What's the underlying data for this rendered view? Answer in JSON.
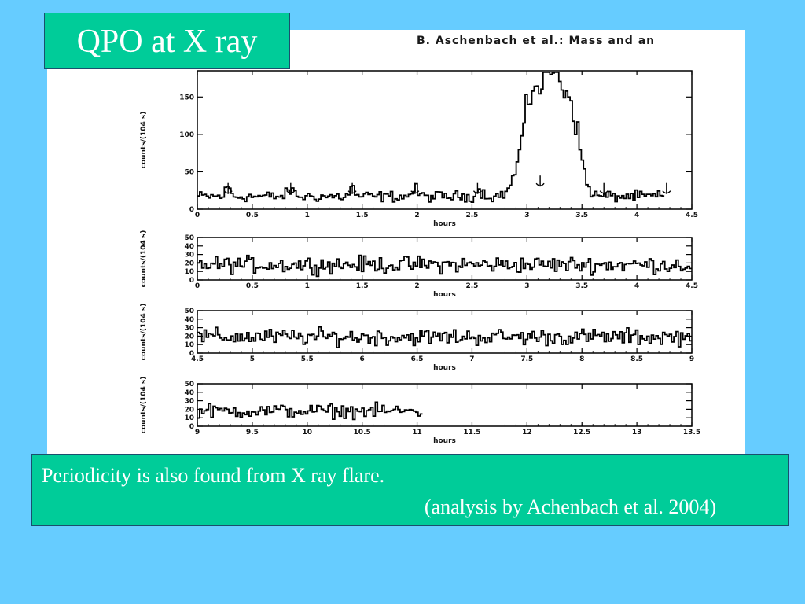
{
  "slide": {
    "title": "QPO at X ray",
    "caption_line1": "Periodicity is also found from X ray flare.",
    "caption_line2": "(analysis by Achenbach et al. 2004)"
  },
  "figure": {
    "paper_header": "B. Aschenbach et al.: Mass and an"
  },
  "colors": {
    "background": "#66ccff",
    "box": "#00cc99",
    "trace": "#000000"
  },
  "chart_data": [
    {
      "type": "line",
      "xlabel": "hours",
      "ylabel": "counts/(104 s)",
      "xlim": [
        0,
        4.5
      ],
      "ylim": [
        0,
        185
      ],
      "xticks": [
        0,
        0.5,
        1,
        1.5,
        2,
        2.5,
        3,
        3.5,
        4,
        4.5
      ],
      "xtick_labels": [
        "0",
        "0.5",
        "1",
        "1.5",
        "2",
        "2.5",
        "3",
        "3.5",
        "4",
        "4.5"
      ],
      "yticks": [
        0,
        50,
        100,
        150
      ],
      "ytick_labels": [
        "0",
        "50",
        "100",
        "150"
      ],
      "base_level": 17,
      "noise": 4.5,
      "bumps": [
        {
          "x": 0.28,
          "amp": 13,
          "w": 0.03
        },
        {
          "x": 0.85,
          "amp": 9,
          "w": 0.04
        },
        {
          "x": 1.41,
          "amp": 12,
          "w": 0.03
        },
        {
          "x": 1.98,
          "amp": 9,
          "w": 0.04
        },
        {
          "x": 2.57,
          "amp": 8,
          "w": 0.04
        }
      ],
      "flare": [
        {
          "x": 3.05,
          "amp": 115,
          "w": 0.14
        },
        {
          "x": 3.25,
          "amp": 150,
          "w": 0.16
        },
        {
          "x": 3.42,
          "amp": 70,
          "w": 0.1
        }
      ],
      "dip": {
        "x": 3.12,
        "depth": 45,
        "w": 0.015
      },
      "data_end": 4.25,
      "arrows_x": [
        0.28,
        0.85,
        1.41,
        1.98,
        2.55,
        3.12,
        3.7,
        4.27
      ]
    },
    {
      "type": "line",
      "xlabel": "hours",
      "ylabel": "counts/(104 s)",
      "xlim": [
        0,
        4.5
      ],
      "ylim": [
        0,
        50
      ],
      "xticks": [
        0,
        0.5,
        1,
        1.5,
        2,
        2.5,
        3,
        3.5,
        4,
        4.5
      ],
      "xtick_labels": [
        "0",
        "0.5",
        "1",
        "1.5",
        "2",
        "2.5",
        "3",
        "3.5",
        "4",
        "4.5"
      ],
      "yticks": [
        0,
        10,
        20,
        30,
        40,
        50
      ],
      "ytick_labels": [
        "0",
        "10",
        "20",
        "30",
        "40",
        "50"
      ],
      "base_level": 18,
      "noise": 6,
      "bumps": [],
      "data_end": 4.5,
      "arrows_x": []
    },
    {
      "type": "line",
      "xlabel": "hours",
      "ylabel": "counts/(104 s)",
      "xlim": [
        4.5,
        9
      ],
      "ylim": [
        0,
        50
      ],
      "xticks": [
        4.5,
        5,
        5.5,
        6,
        6.5,
        7,
        7.5,
        8,
        8.5,
        9
      ],
      "xtick_labels": [
        "4.5",
        "5",
        "5.5",
        "6",
        "6.5",
        "7",
        "7.5",
        "8",
        "8.5",
        "9"
      ],
      "yticks": [
        0,
        10,
        20,
        30,
        40,
        50
      ],
      "ytick_labels": [
        "0",
        "10",
        "20",
        "30",
        "40",
        "50"
      ],
      "base_level": 19,
      "noise": 6,
      "bumps": [],
      "data_end": 9,
      "arrows_x": []
    },
    {
      "type": "line",
      "xlabel": "hours",
      "ylabel": "counts/(104 s)",
      "xlim": [
        9,
        13.5
      ],
      "ylim": [
        0,
        50
      ],
      "xticks": [
        9,
        9.5,
        10,
        10.5,
        11,
        11.5,
        12,
        12.5,
        13,
        13.5
      ],
      "xtick_labels": [
        "9",
        "9.5",
        "10",
        "10.5",
        "11",
        "11.5",
        "12",
        "12.5",
        "13",
        "13.5"
      ],
      "yticks": [
        0,
        10,
        20,
        30,
        40,
        50
      ],
      "ytick_labels": [
        "0",
        "10",
        "20",
        "30",
        "40",
        "50"
      ],
      "base_level": 18,
      "noise": 5,
      "bumps": [],
      "data_end": 11.05,
      "flat_line": {
        "x0": 11.05,
        "x1": 11.5,
        "y": 18
      },
      "arrows_x": []
    }
  ]
}
